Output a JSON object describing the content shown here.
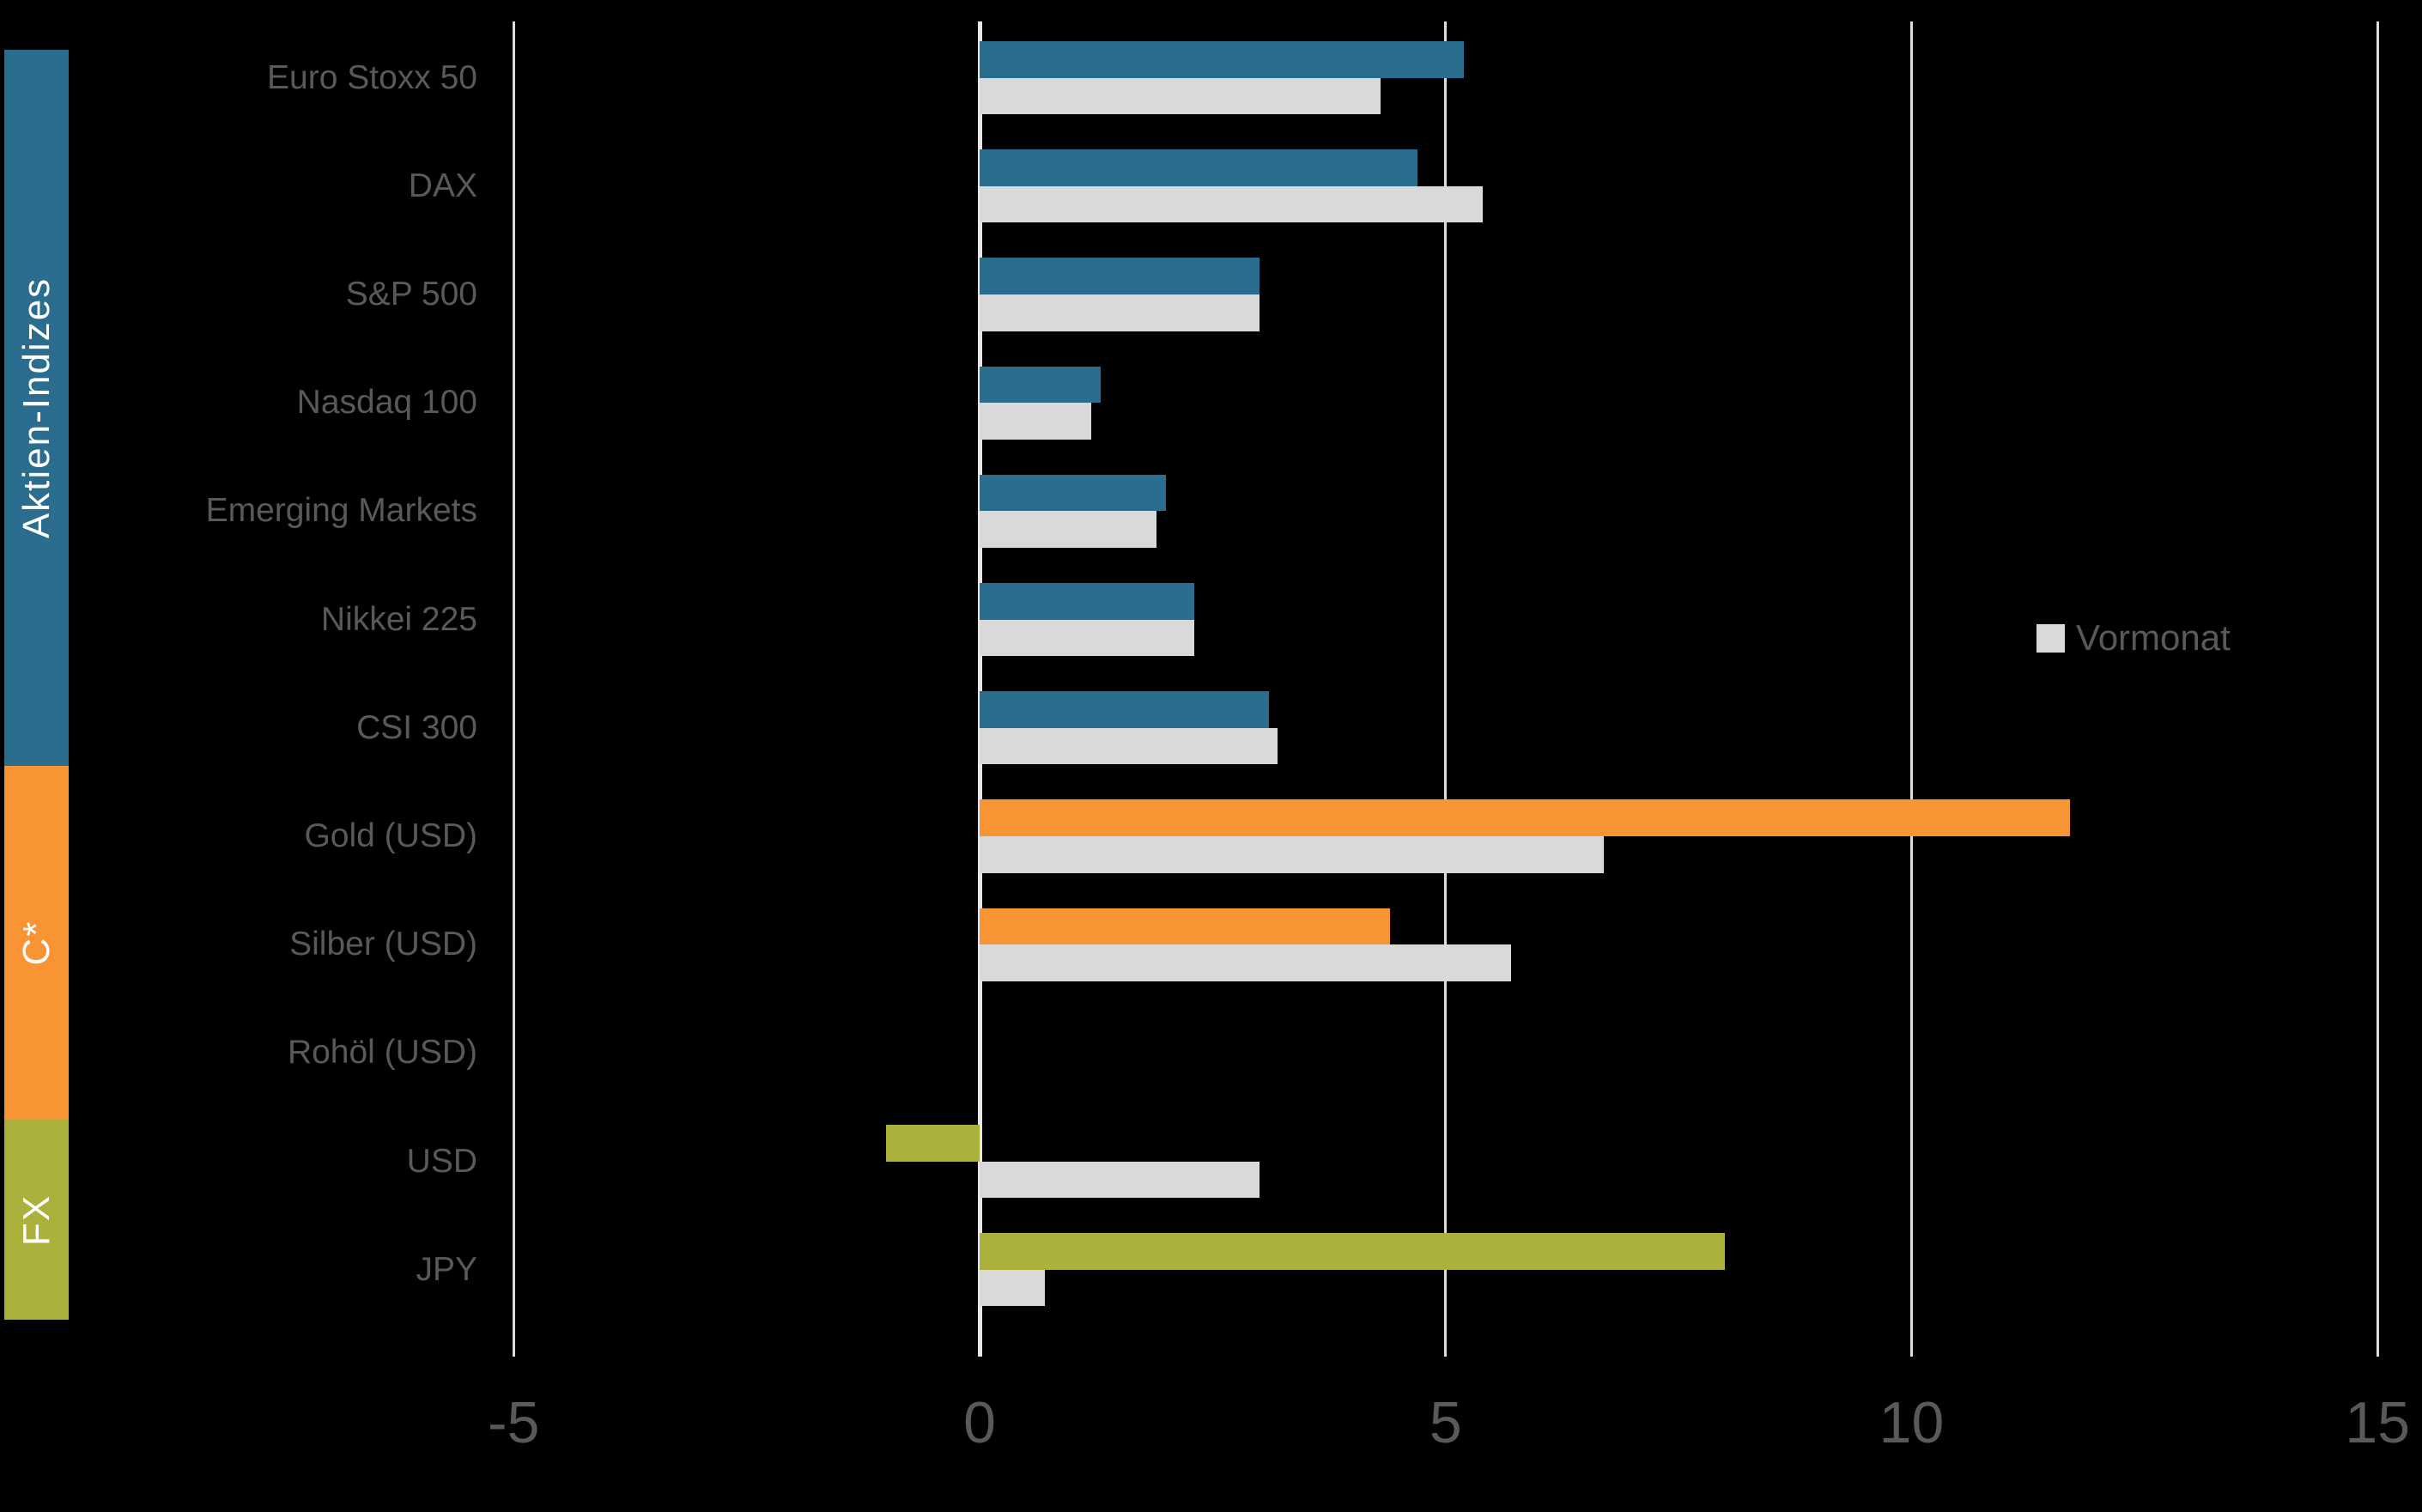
{
  "chart_data": {
    "type": "bar",
    "orientation": "horizontal",
    "categories": [
      "Euro Stoxx 50",
      "DAX",
      "S&P 500",
      "Nasdaq 100",
      "Emerging Markets",
      "Nikkei 225",
      "CSI 300",
      "Gold (USD)",
      "Silber (USD)",
      "Rohöl (USD)",
      "USD",
      "JPY"
    ],
    "series": [
      {
        "name": "",
        "values": [
          5.2,
          4.7,
          3.0,
          1.3,
          2.0,
          2.3,
          3.1,
          11.7,
          4.4,
          0.0,
          -1.0,
          8.0
        ]
      },
      {
        "name": "Vormonat",
        "values": [
          4.3,
          5.4,
          3.0,
          1.2,
          1.9,
          2.3,
          3.2,
          6.7,
          5.7,
          0.0,
          3.0,
          0.7
        ],
        "color": "#D9D9D9"
      }
    ],
    "groups": [
      {
        "label": "Aktien-Indizes",
        "color": "#2A6D8E",
        "first_row": 0,
        "last_row": 6
      },
      {
        "label": "C*",
        "color": "#F99434",
        "first_row": 7,
        "last_row": 9
      },
      {
        "label": "FX",
        "color": "#ACB13C",
        "first_row": 10,
        "last_row": 11
      }
    ],
    "x_ticks": [
      -5,
      0,
      5,
      10,
      15
    ],
    "x_range": [
      -5,
      15.5
    ],
    "grid": true,
    "legend": {
      "label": "Vormonat",
      "swatch_color": "#D9D9D9",
      "position": "right-middle"
    }
  },
  "colors": {
    "background": "#000000",
    "gridline": "#DCDCDC",
    "zero_line": "#E6E6E6",
    "tick_text": "#595959",
    "category_text": "#595959",
    "sidebar_text": "#FFFFFF",
    "vormonat_bar": "#D9D9D9"
  }
}
